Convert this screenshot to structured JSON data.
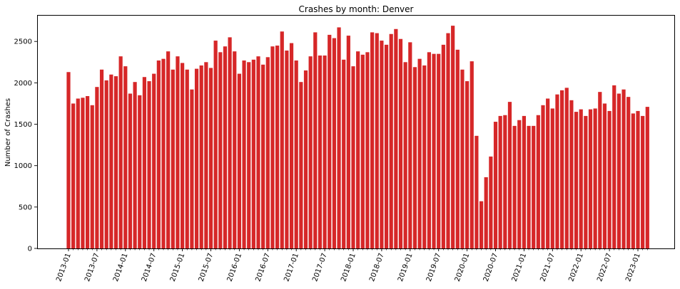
{
  "chart_data": {
    "type": "bar",
    "title": "Crashes by month: Denver",
    "xlabel": "",
    "ylabel": "Number of Crashes",
    "ylim": [
      0,
      2820
    ],
    "yticks": [
      0,
      500,
      1000,
      1500,
      2000,
      2500
    ],
    "xtick_labels": [
      "2013-01",
      "2013-07",
      "2014-01",
      "2014-07",
      "2015-01",
      "2015-07",
      "2016-01",
      "2016-07",
      "2017-01",
      "2017-07",
      "2018-01",
      "2018-07",
      "2019-01",
      "2019-07",
      "2020-01",
      "2020-07",
      "2021-01",
      "2021-07",
      "2022-01",
      "2022-07",
      "2023-01"
    ],
    "bar_color": "#d62728",
    "grid": false,
    "start_month": "2013-01",
    "values": [
      2130,
      1750,
      1810,
      1820,
      1840,
      1730,
      1950,
      2160,
      2030,
      2100,
      2080,
      2320,
      2200,
      1870,
      2010,
      1850,
      2070,
      2020,
      2110,
      2270,
      2290,
      2380,
      2160,
      2320,
      2240,
      2160,
      1920,
      2170,
      2210,
      2250,
      2180,
      2510,
      2370,
      2440,
      2550,
      2380,
      2110,
      2270,
      2250,
      2280,
      2320,
      2220,
      2310,
      2440,
      2450,
      2620,
      2390,
      2480,
      2270,
      2010,
      2150,
      2320,
      2610,
      2330,
      2330,
      2580,
      2540,
      2670,
      2280,
      2570,
      2200,
      2380,
      2340,
      2370,
      2610,
      2600,
      2510,
      2460,
      2590,
      2650,
      2530,
      2250,
      2490,
      2190,
      2290,
      2210,
      2370,
      2350,
      2350,
      2460,
      2600,
      2690,
      2400,
      2160,
      2020,
      2260,
      1360,
      570,
      860,
      1110,
      1530,
      1600,
      1610,
      1770,
      1480,
      1550,
      1600,
      1480,
      1480,
      1610,
      1730,
      1810,
      1690,
      1860,
      1910,
      1940,
      1790,
      1650,
      1680,
      1600,
      1680,
      1690,
      1890,
      1750,
      1660,
      1970,
      1870,
      1920,
      1830,
      1630,
      1660,
      1600,
      1710
    ]
  }
}
